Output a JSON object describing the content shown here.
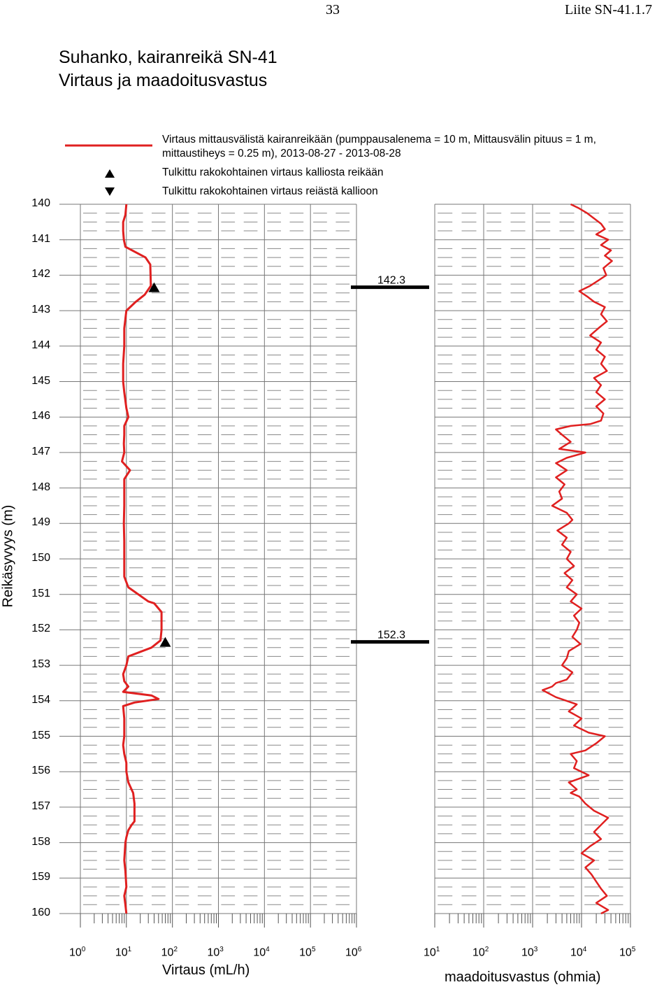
{
  "header": {
    "page_number": "33",
    "appendix": "Liite SN-41.1.7"
  },
  "title": {
    "line1": "Suhanko, kairanreikä SN-41",
    "line2": "Virtaus ja maadoitusvastus"
  },
  "legend": {
    "line_label_1": "Virtaus mittausvälistä kairanreikään (pumppausalenema = 10 m, Mittausvälin pituus = 1 m,",
    "line_label_2": "mittaustiheys = 0.25 m), 2013-08-27 - 2013-08-28",
    "up_label": "Tulkittu rakokohtainen virtaus kalliosta reikään",
    "down_label": "Tulkittu rakokohtainen virtaus reiästä kallioon",
    "line_color": "#e02020"
  },
  "chart_data": [
    {
      "type": "line",
      "name": "flow",
      "xlabel": "Virtaus (mL/h)",
      "ylabel": "Reikäsyvyys (m)",
      "x_scale": "log",
      "xlim": [
        1,
        1000000
      ],
      "ylim": [
        140,
        160
      ],
      "y_inverted": true,
      "y_ticks": [
        140,
        141,
        142,
        143,
        144,
        145,
        146,
        147,
        148,
        149,
        150,
        151,
        152,
        153,
        154,
        155,
        156,
        157,
        158,
        159,
        160
      ],
      "x_tick_labels": [
        {
          "base": "10",
          "exp": "0"
        },
        {
          "base": "10",
          "exp": "1"
        },
        {
          "base": "10",
          "exp": "2"
        },
        {
          "base": "10",
          "exp": "3"
        },
        {
          "base": "10",
          "exp": "4"
        },
        {
          "base": "10",
          "exp": "5"
        },
        {
          "base": "10",
          "exp": "6"
        }
      ],
      "points": [
        [
          140.0,
          10
        ],
        [
          140.3,
          9.5
        ],
        [
          140.5,
          8.5
        ],
        [
          140.75,
          8.5
        ],
        [
          141.0,
          8.8
        ],
        [
          141.2,
          9.5
        ],
        [
          141.5,
          26
        ],
        [
          141.7,
          33
        ],
        [
          142.3,
          34
        ],
        [
          142.55,
          25
        ],
        [
          142.75,
          16
        ],
        [
          143.0,
          10
        ],
        [
          143.5,
          9
        ],
        [
          144.0,
          9
        ],
        [
          144.5,
          8.5
        ],
        [
          145.0,
          8.5
        ],
        [
          145.3,
          9
        ],
        [
          145.75,
          10
        ],
        [
          146.0,
          11
        ],
        [
          146.25,
          9
        ],
        [
          146.5,
          9
        ],
        [
          146.75,
          8.8
        ],
        [
          147.0,
          9
        ],
        [
          147.25,
          8
        ],
        [
          147.5,
          12
        ],
        [
          147.75,
          9
        ],
        [
          148.0,
          9
        ],
        [
          148.5,
          9
        ],
        [
          149.0,
          8.8
        ],
        [
          149.5,
          9
        ],
        [
          150.0,
          9
        ],
        [
          150.5,
          9
        ],
        [
          150.8,
          11
        ],
        [
          151.2,
          30
        ],
        [
          151.25,
          40
        ],
        [
          151.5,
          58
        ],
        [
          152.0,
          58
        ],
        [
          152.3,
          55
        ],
        [
          152.5,
          35
        ],
        [
          152.75,
          11
        ],
        [
          153.0,
          10
        ],
        [
          153.25,
          8.5
        ],
        [
          153.45,
          9
        ],
        [
          153.6,
          11
        ],
        [
          153.75,
          8.5
        ],
        [
          153.85,
          35
        ],
        [
          153.95,
          50
        ],
        [
          154.05,
          15
        ],
        [
          154.15,
          8.5
        ],
        [
          154.5,
          9
        ],
        [
          155.0,
          9
        ],
        [
          155.25,
          8.5
        ],
        [
          155.5,
          9
        ],
        [
          155.75,
          10
        ],
        [
          156.0,
          10
        ],
        [
          156.3,
          11
        ],
        [
          156.6,
          14
        ],
        [
          156.9,
          15
        ],
        [
          157.1,
          15
        ],
        [
          157.4,
          15
        ],
        [
          157.5,
          13
        ],
        [
          157.65,
          11
        ],
        [
          157.85,
          10
        ],
        [
          158.0,
          9.5
        ],
        [
          158.5,
          9
        ],
        [
          158.8,
          9.5
        ],
        [
          159.25,
          10
        ],
        [
          159.5,
          9
        ],
        [
          159.75,
          9.5
        ],
        [
          160.0,
          10
        ]
      ],
      "markers": [
        {
          "direction": "up",
          "depth": 142.3,
          "x": 40
        },
        {
          "direction": "up",
          "depth": 152.3,
          "x": 70
        }
      ]
    },
    {
      "type": "bar",
      "name": "fracture-depths",
      "values": [
        142.3,
        152.3
      ],
      "labels": [
        "142.3",
        "152.3"
      ]
    },
    {
      "type": "line",
      "name": "resistance",
      "xlabel": "maadoitusvastus (ohmia)",
      "x_scale": "log",
      "xlim": [
        10,
        100000
      ],
      "ylim": [
        140,
        160
      ],
      "y_inverted": true,
      "x_tick_labels": [
        {
          "base": "10",
          "exp": "1"
        },
        {
          "base": "10",
          "exp": "2"
        },
        {
          "base": "10",
          "exp": "3"
        },
        {
          "base": "10",
          "exp": "4"
        },
        {
          "base": "10",
          "exp": "5"
        }
      ],
      "points": [
        [
          140.0,
          6000
        ],
        [
          140.1,
          8500
        ],
        [
          140.25,
          13000
        ],
        [
          140.4,
          18000
        ],
        [
          140.55,
          25000
        ],
        [
          140.7,
          30000
        ],
        [
          140.85,
          20000
        ],
        [
          141.0,
          35000
        ],
        [
          141.15,
          25000
        ],
        [
          141.3,
          40000
        ],
        [
          141.45,
          30000
        ],
        [
          141.6,
          42000
        ],
        [
          141.8,
          28000
        ],
        [
          142.0,
          32000
        ],
        [
          142.15,
          22000
        ],
        [
          142.3,
          15000
        ],
        [
          142.45,
          9000
        ],
        [
          142.6,
          13000
        ],
        [
          142.75,
          18000
        ],
        [
          142.9,
          30000
        ],
        [
          143.1,
          25000
        ],
        [
          143.3,
          33000
        ],
        [
          143.5,
          22000
        ],
        [
          143.7,
          15000
        ],
        [
          143.9,
          25000
        ],
        [
          144.1,
          20000
        ],
        [
          144.3,
          30000
        ],
        [
          144.5,
          25000
        ],
        [
          144.7,
          33000
        ],
        [
          144.9,
          18000
        ],
        [
          145.1,
          25000
        ],
        [
          145.3,
          20000
        ],
        [
          145.5,
          30000
        ],
        [
          145.7,
          20000
        ],
        [
          145.9,
          28000
        ],
        [
          146.1,
          25000
        ],
        [
          146.2,
          15000
        ],
        [
          146.25,
          6000
        ],
        [
          146.35,
          3000
        ],
        [
          146.5,
          4000
        ],
        [
          146.7,
          6000
        ],
        [
          146.9,
          3500
        ],
        [
          147.0,
          12000
        ],
        [
          147.15,
          5000
        ],
        [
          147.3,
          3000
        ],
        [
          147.5,
          5000
        ],
        [
          147.7,
          3000
        ],
        [
          147.9,
          4500
        ],
        [
          148.1,
          3500
        ],
        [
          148.3,
          4000
        ],
        [
          148.5,
          2500
        ],
        [
          148.7,
          5000
        ],
        [
          148.9,
          6500
        ],
        [
          149.0,
          5500
        ],
        [
          149.2,
          3200
        ],
        [
          149.4,
          5000
        ],
        [
          149.6,
          4000
        ],
        [
          149.8,
          6000
        ],
        [
          150.0,
          5000
        ],
        [
          150.2,
          7000
        ],
        [
          150.4,
          4500
        ],
        [
          150.6,
          6500
        ],
        [
          150.8,
          5000
        ],
        [
          151.0,
          8000
        ],
        [
          151.2,
          6000
        ],
        [
          151.4,
          10000
        ],
        [
          151.6,
          7000
        ],
        [
          151.8,
          9000
        ],
        [
          152.0,
          8000
        ],
        [
          152.2,
          6500
        ],
        [
          152.4,
          9500
        ],
        [
          152.6,
          5500
        ],
        [
          152.8,
          5000
        ],
        [
          153.0,
          4000
        ],
        [
          153.2,
          6500
        ],
        [
          153.4,
          5000
        ],
        [
          153.5,
          3000
        ],
        [
          153.6,
          2500
        ],
        [
          153.7,
          1600
        ],
        [
          153.9,
          3000
        ],
        [
          154.1,
          8000
        ],
        [
          154.3,
          5500
        ],
        [
          154.5,
          10000
        ],
        [
          154.7,
          7000
        ],
        [
          154.9,
          14000
        ],
        [
          155.0,
          30000
        ],
        [
          155.2,
          20000
        ],
        [
          155.4,
          12000
        ],
        [
          155.5,
          6000
        ],
        [
          155.7,
          8000
        ],
        [
          155.9,
          7000
        ],
        [
          156.1,
          14000
        ],
        [
          156.3,
          5500
        ],
        [
          156.5,
          8000
        ],
        [
          156.6,
          6000
        ],
        [
          156.7,
          9000
        ],
        [
          156.9,
          12000
        ],
        [
          157.1,
          18000
        ],
        [
          157.3,
          35000
        ],
        [
          157.5,
          25000
        ],
        [
          157.7,
          18000
        ],
        [
          157.9,
          25000
        ],
        [
          158.1,
          15000
        ],
        [
          158.3,
          10000
        ],
        [
          158.5,
          18000
        ],
        [
          158.7,
          12000
        ],
        [
          158.9,
          16000
        ],
        [
          159.1,
          20000
        ],
        [
          159.3,
          25000
        ],
        [
          159.5,
          33000
        ],
        [
          159.7,
          20000
        ],
        [
          159.9,
          35000
        ],
        [
          160.0,
          25000
        ]
      ]
    }
  ]
}
